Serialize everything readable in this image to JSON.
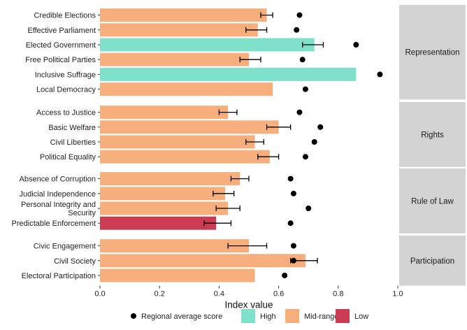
{
  "chart_data": {
    "type": "bar",
    "orientation": "horizontal",
    "xlabel": "Index value",
    "ylabel": "",
    "xlim": [
      0,
      1.0
    ],
    "x_ticks": [
      "0.0",
      "0.2",
      "0.4",
      "0.6",
      "0.8",
      "1.0"
    ],
    "grid": false,
    "legend_position": "bottom",
    "colors": {
      "High": "#7fe0cc",
      "Mid-range": "#f6ae7c",
      "Low": "#c93c53",
      "point": "#000000",
      "strip_bg": "#d3d3d3"
    },
    "legend": {
      "point_label": "Regional average score",
      "items": [
        "High",
        "Mid-range",
        "Low"
      ]
    },
    "panels": [
      {
        "name": "Representation",
        "rows": [
          {
            "label": "Credible Elections",
            "value": 0.56,
            "err": [
              0.54,
              0.58
            ],
            "regional_avg": 0.67,
            "category": "Mid-range"
          },
          {
            "label": "Effective Parliament",
            "value": 0.53,
            "err": [
              0.49,
              0.56
            ],
            "regional_avg": 0.66,
            "category": "Mid-range"
          },
          {
            "label": "Elected Government",
            "value": 0.72,
            "err": [
              0.68,
              0.75
            ],
            "regional_avg": 0.86,
            "category": "High"
          },
          {
            "label": "Free Political Parties",
            "value": 0.5,
            "err": [
              0.47,
              0.54
            ],
            "regional_avg": 0.68,
            "category": "Mid-range"
          },
          {
            "label": "Inclusive Suffrage",
            "value": 0.86,
            "err": null,
            "regional_avg": 0.94,
            "category": "High"
          },
          {
            "label": "Local Democracy",
            "value": 0.58,
            "err": null,
            "regional_avg": 0.69,
            "category": "Mid-range"
          }
        ]
      },
      {
        "name": "Rights",
        "rows": [
          {
            "label": "Access to Justice",
            "value": 0.43,
            "err": [
              0.4,
              0.46
            ],
            "regional_avg": 0.67,
            "category": "Mid-range"
          },
          {
            "label": "Basic Welfare",
            "value": 0.6,
            "err": [
              0.56,
              0.64
            ],
            "regional_avg": 0.74,
            "category": "Mid-range"
          },
          {
            "label": "Civil Liberties",
            "value": 0.52,
            "err": [
              0.49,
              0.55
            ],
            "regional_avg": 0.72,
            "category": "Mid-range"
          },
          {
            "label": "Political Equality",
            "value": 0.57,
            "err": [
              0.53,
              0.6
            ],
            "regional_avg": 0.69,
            "category": "Mid-range"
          }
        ]
      },
      {
        "name": "Rule of Law",
        "rows": [
          {
            "label": "Absence of Corruption",
            "value": 0.47,
            "err": [
              0.44,
              0.5
            ],
            "regional_avg": 0.64,
            "category": "Mid-range"
          },
          {
            "label": "Judicial Independence",
            "value": 0.42,
            "err": [
              0.38,
              0.45
            ],
            "regional_avg": 0.65,
            "category": "Mid-range"
          },
          {
            "label": "Personal Integrity and Security",
            "label_lines": [
              "Personal Integrity and",
              "Security"
            ],
            "value": 0.43,
            "err": [
              0.39,
              0.47
            ],
            "regional_avg": 0.7,
            "category": "Mid-range"
          },
          {
            "label": "Predictable Enforcement",
            "value": 0.39,
            "err": [
              0.35,
              0.44
            ],
            "regional_avg": 0.64,
            "category": "Low"
          }
        ]
      },
      {
        "name": "Participation",
        "rows": [
          {
            "label": "Civic Engagement",
            "value": 0.5,
            "err": [
              0.43,
              0.56
            ],
            "regional_avg": 0.65,
            "category": "Mid-range"
          },
          {
            "label": "Civil Society",
            "value": 0.69,
            "err": [
              0.64,
              0.73
            ],
            "regional_avg": 0.65,
            "category": "Mid-range"
          },
          {
            "label": "Electoral Participation",
            "value": 0.52,
            "err": null,
            "regional_avg": 0.62,
            "category": "Mid-range"
          }
        ]
      }
    ]
  }
}
